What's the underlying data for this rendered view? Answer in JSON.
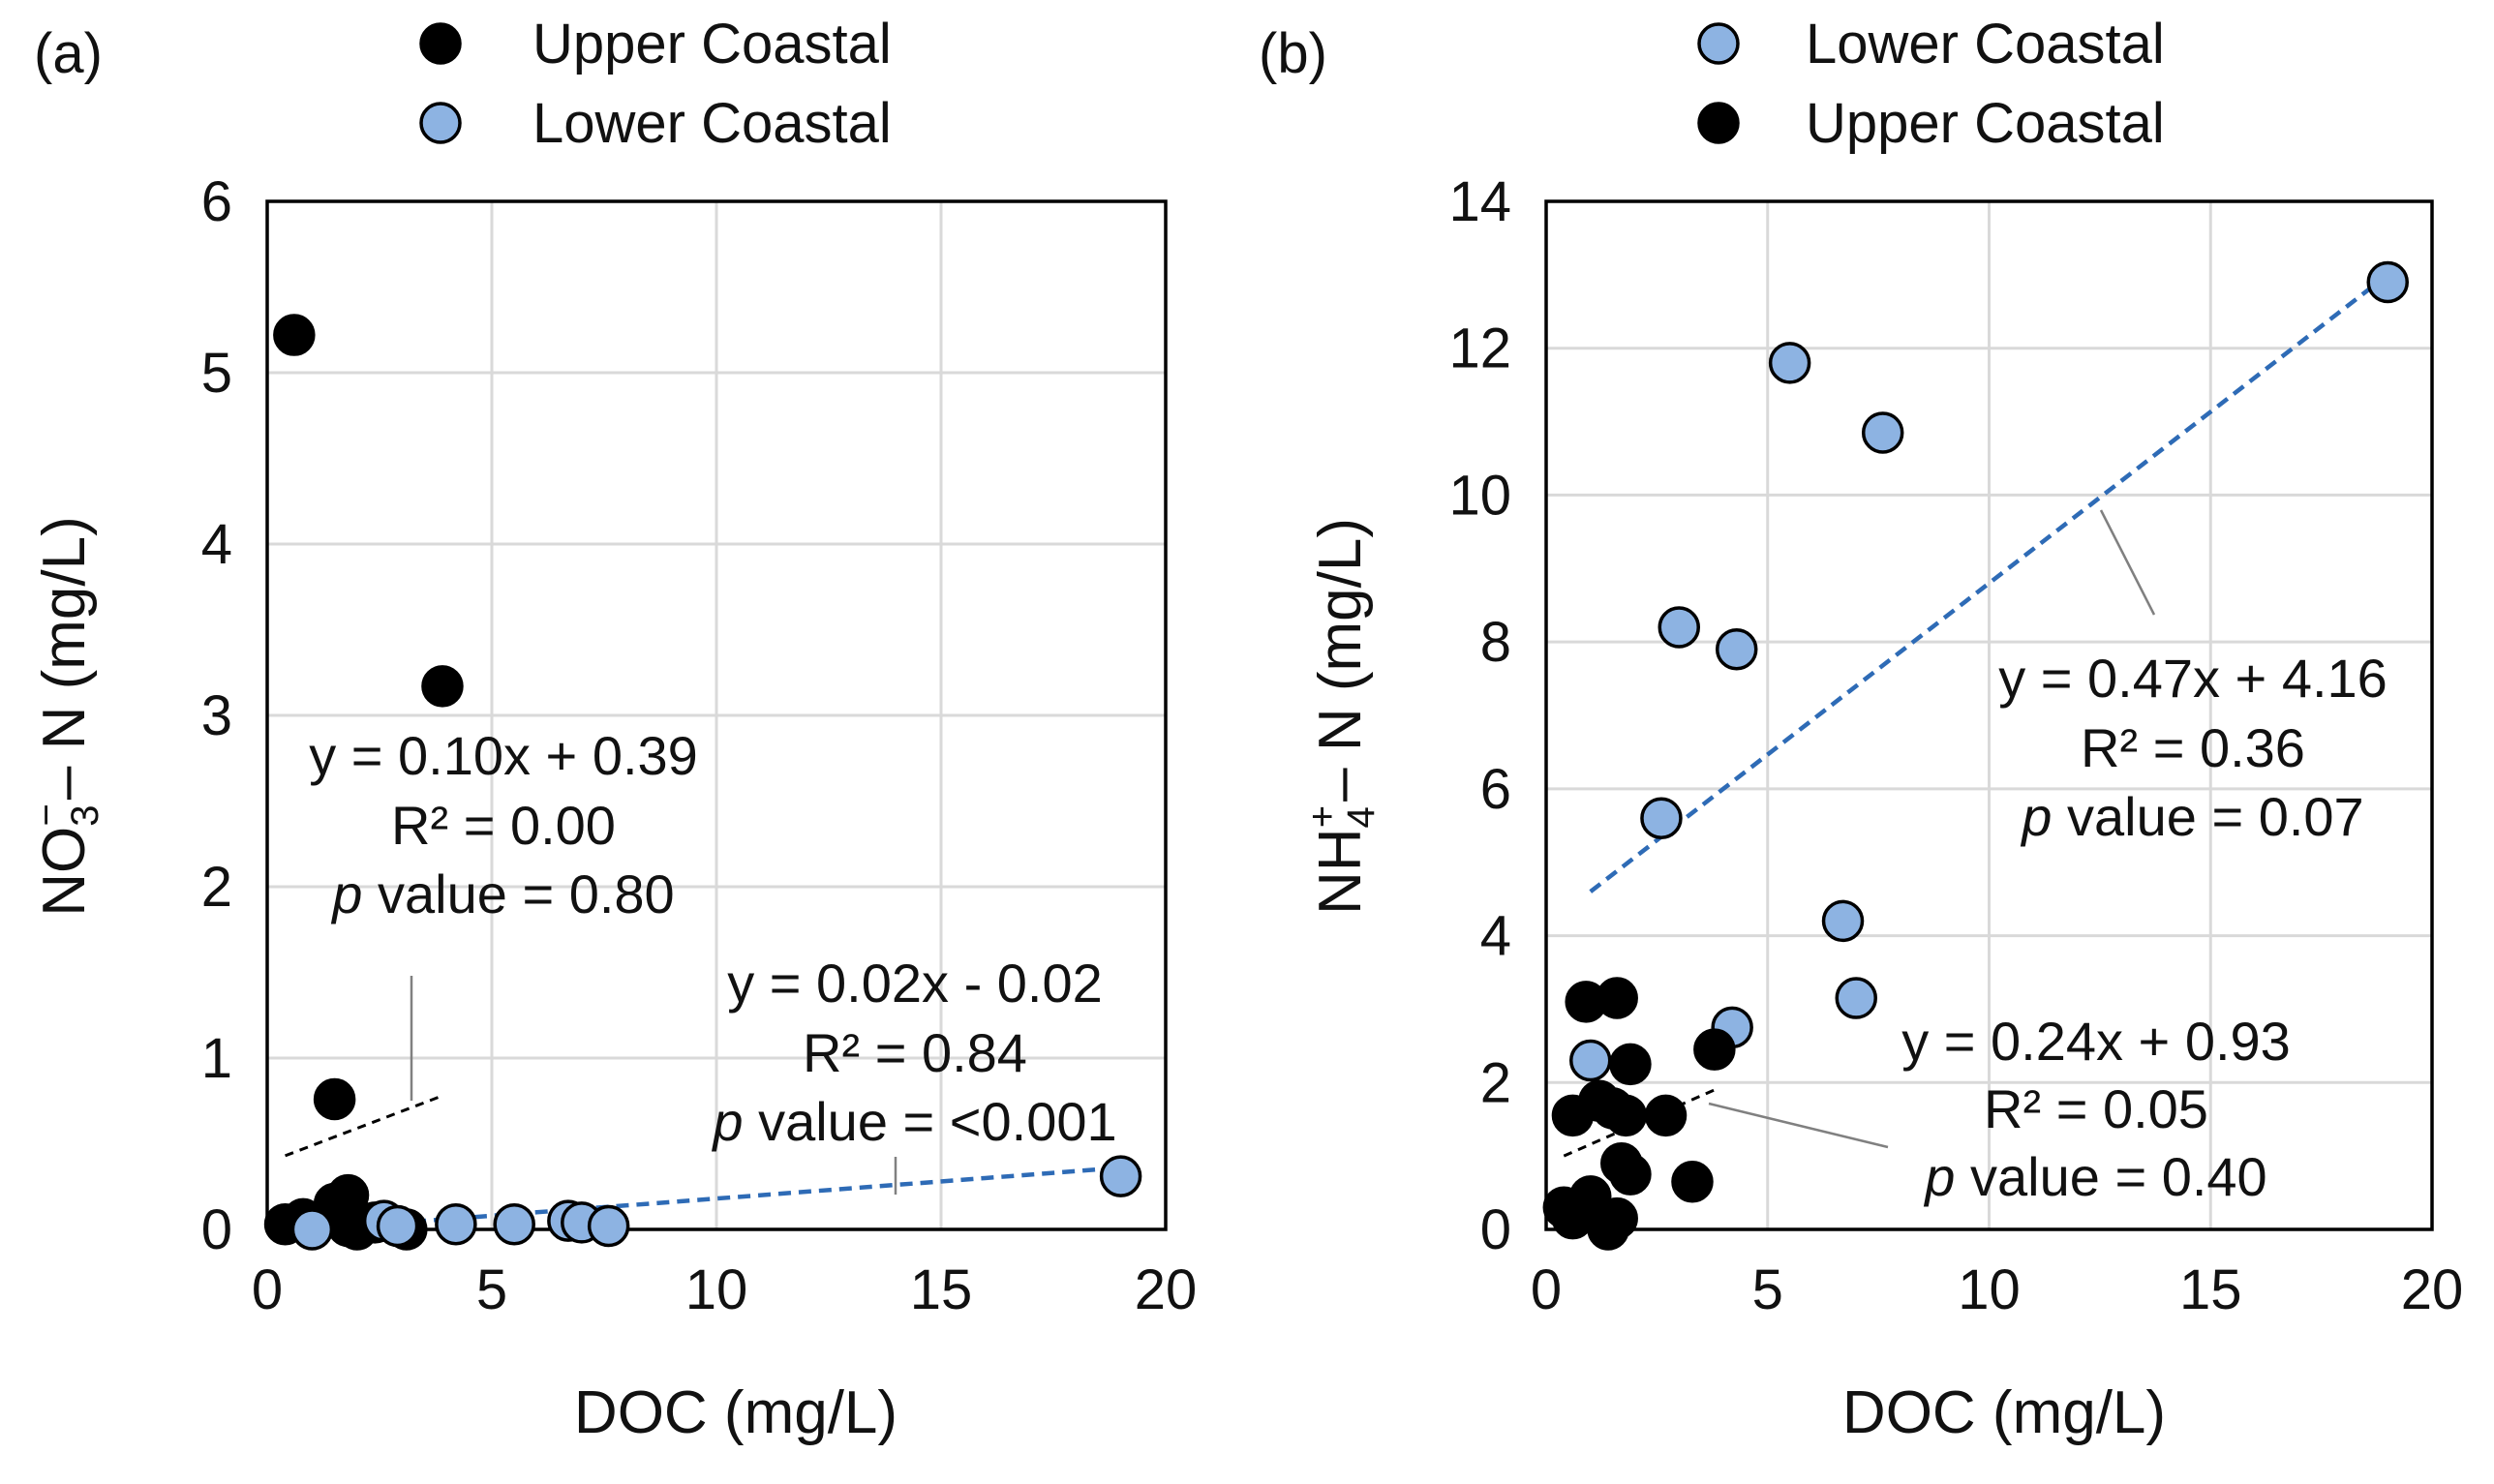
{
  "chart_data": [
    {
      "type": "scatter",
      "panel_label": "(a)",
      "xlabel": "DOC  (mg/L)",
      "ylabel": {
        "base": "NO",
        "sub": "3",
        "sup": "−",
        "rest": "– N (mg/L)"
      },
      "xlim": [
        0,
        20
      ],
      "ylim": [
        0,
        6
      ],
      "xticks": [
        "0",
        "5",
        "10",
        "15",
        "20"
      ],
      "yticks": [
        "0",
        "1",
        "2",
        "3",
        "4",
        "5",
        "6"
      ],
      "grid": true,
      "legend": [
        {
          "label": "Upper Coastal",
          "color": "#000000"
        },
        {
          "label": "Lower Coastal",
          "color": "#8db3e2"
        }
      ],
      "series": [
        {
          "name": "Upper Coastal",
          "color": "#000000",
          "points": [
            [
              0.6,
              5.22
            ],
            [
              3.9,
              3.17
            ],
            [
              1.5,
              0.76
            ],
            [
              1.8,
              0.2
            ],
            [
              1.5,
              0.15
            ],
            [
              0.4,
              0.03
            ],
            [
              0.8,
              0.06
            ],
            [
              1.8,
              0.02
            ],
            [
              2.0,
              0.05
            ],
            [
              2.4,
              0.04
            ],
            [
              3.1,
              0.0
            ],
            [
              2.0,
              0.0
            ]
          ],
          "fit": {
            "line": [
              [
                0.4,
                0.43
              ],
              [
                3.9,
                0.78
              ]
            ],
            "style": "dashed",
            "color": "#000000"
          },
          "annotation": {
            "eq": "y = 0.10x + 0.39",
            "r2": "R² = 0.00",
            "p_italic": "p",
            "p_rest": " value = 0.80"
          }
        },
        {
          "name": "Lower Coastal",
          "color": "#8db3e2",
          "points": [
            [
              1.0,
              0.0
            ],
            [
              2.6,
              0.05
            ],
            [
              2.9,
              0.02
            ],
            [
              4.2,
              0.03
            ],
            [
              5.5,
              0.03
            ],
            [
              6.7,
              0.05
            ],
            [
              7.0,
              0.04
            ],
            [
              7.6,
              0.02
            ],
            [
              19.0,
              0.31
            ]
          ],
          "fit": {
            "line": [
              [
                1.0,
                0.0
              ],
              [
                19.0,
                0.36
              ]
            ],
            "style": "dashed",
            "color": "#2e6bb6"
          },
          "annotation": {
            "eq": "y = 0.02x - 0.02",
            "r2": "R² = 0.84",
            "p_italic": "p",
            "p_rest": " value  = <0.001"
          }
        }
      ]
    },
    {
      "type": "scatter",
      "panel_label": "(b)",
      "xlabel": "DOC (mg/L)",
      "ylabel": {
        "base": "NH",
        "sub": "4",
        "sup": "+",
        "rest": "– N  (mg/L)"
      },
      "xlim": [
        0,
        20
      ],
      "ylim": [
        0,
        14
      ],
      "xticks": [
        "0",
        "5",
        "10",
        "15",
        "20"
      ],
      "yticks": [
        "0",
        "2",
        "4",
        "6",
        "8",
        "10",
        "12",
        "14"
      ],
      "grid": true,
      "legend": [
        {
          "label": "Lower Coastal",
          "color": "#8db3e2"
        },
        {
          "label": "Upper Coastal",
          "color": "#000000"
        }
      ],
      "series": [
        {
          "name": "Lower Coastal",
          "color": "#8db3e2",
          "points": [
            [
              19.0,
              12.9
            ],
            [
              5.5,
              11.8
            ],
            [
              7.6,
              10.85
            ],
            [
              3.0,
              8.2
            ],
            [
              4.3,
              7.9
            ],
            [
              2.6,
              5.6
            ],
            [
              6.7,
              4.2
            ],
            [
              7.0,
              3.15
            ],
            [
              4.2,
              2.75
            ],
            [
              1.0,
              2.3
            ]
          ],
          "fit": {
            "line": [
              [
                1.0,
                4.6
              ],
              [
                19.0,
                13.0
              ]
            ],
            "style": "dashed",
            "color": "#2e6bb6"
          },
          "annotation": {
            "eq": "y = 0.47x + 4.16",
            "r2": "R² = 0.36",
            "p_italic": "p",
            "p_rest": " value  = 0.07"
          }
        },
        {
          "name": "Upper Coastal",
          "color": "#000000",
          "points": [
            [
              0.9,
              3.1
            ],
            [
              1.6,
              3.15
            ],
            [
              1.9,
              2.25
            ],
            [
              3.8,
              2.45
            ],
            [
              1.2,
              1.75
            ],
            [
              0.6,
              1.55
            ],
            [
              1.5,
              1.65
            ],
            [
              1.8,
              1.55
            ],
            [
              2.7,
              1.55
            ],
            [
              1.7,
              0.9
            ],
            [
              1.9,
              0.75
            ],
            [
              3.3,
              0.65
            ],
            [
              0.4,
              0.3
            ],
            [
              1.0,
              0.45
            ],
            [
              0.6,
              0.15
            ],
            [
              1.6,
              0.15
            ],
            [
              1.4,
              0.0
            ]
          ],
          "fit": {
            "line": [
              [
                0.4,
                1.0
              ],
              [
                3.8,
                1.9
              ]
            ],
            "style": "dashed",
            "color": "#000000"
          },
          "annotation": {
            "eq": "y = 0.24x + 0.93",
            "r2": "R² = 0.05",
            "p_italic": "p",
            "p_rest": " value = 0.40"
          }
        }
      ]
    }
  ]
}
